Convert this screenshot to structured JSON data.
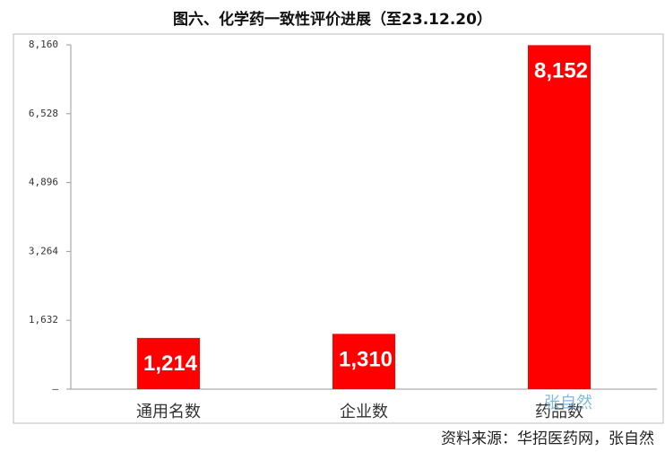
{
  "chart_data": {
    "type": "bar",
    "title": "图六、化学药一致性评价进展（至23.12.20）",
    "categories": [
      "通用名数",
      "企业数",
      "药品数"
    ],
    "values": [
      1214,
      1310,
      8152
    ],
    "value_labels": [
      "1,214",
      "1,310",
      "8,152"
    ],
    "color": "#ff0000",
    "ylim": [
      0,
      8160
    ],
    "yticks": [
      {
        "value": 0,
        "label": "–"
      },
      {
        "value": 1632,
        "label": "1,632"
      },
      {
        "value": 3264,
        "label": "3,264"
      },
      {
        "value": 4896,
        "label": "4,896"
      },
      {
        "value": 6528,
        "label": "6,528"
      },
      {
        "value": 8160,
        "label": "8,160"
      }
    ],
    "grid": false,
    "watermark": "张自然",
    "source": "资料来源：华招医药网，张自然"
  }
}
